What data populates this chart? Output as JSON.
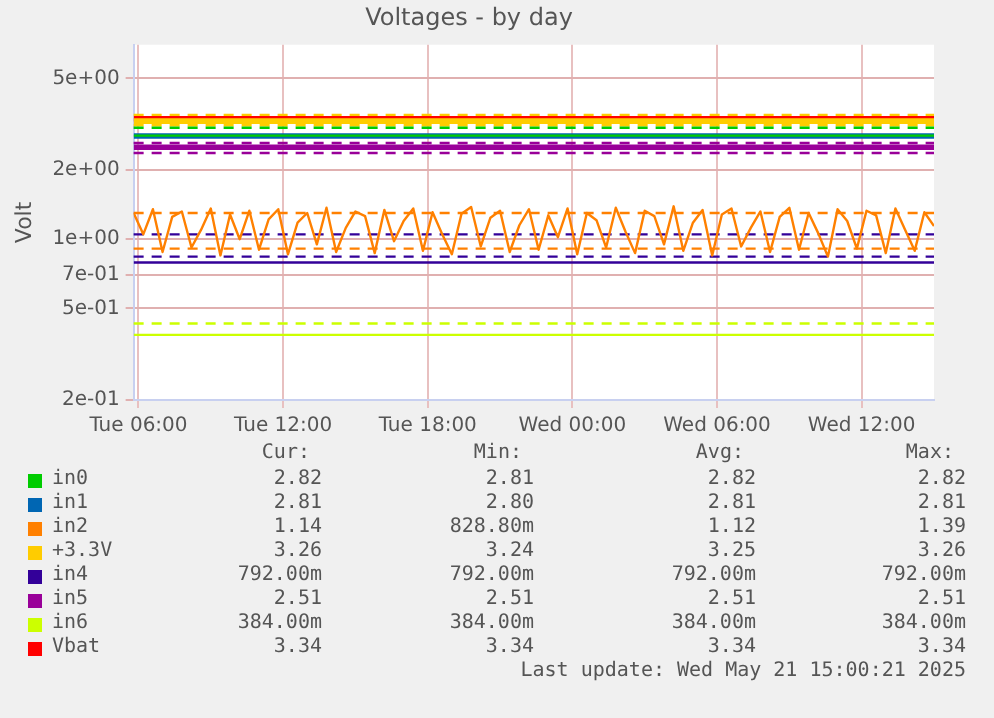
{
  "chart_data": {
    "type": "line",
    "title": "Voltages - by day",
    "ylabel": "Volt",
    "log": "y",
    "grid": true,
    "legend": "bottom",
    "marker": "none",
    "line_style": "solid",
    "x": [
      "2025-05-20T05:48",
      "2025-05-21T15:00"
    ],
    "xlim": [
      "2025-05-20T05:48",
      "2025-05-21T15:00"
    ],
    "xticks": [
      {
        "value": "2025-05-20T06:00",
        "label": "Tue 06:00"
      },
      {
        "value": "2025-05-20T12:00",
        "label": "Tue 12:00"
      },
      {
        "value": "2025-05-20T18:00",
        "label": "Tue 18:00"
      },
      {
        "value": "2025-05-21T00:00",
        "label": "Wed 00:00"
      },
      {
        "value": "2025-05-21T06:00",
        "label": "Wed 06:00"
      },
      {
        "value": "2025-05-21T12:00",
        "label": "Wed 12:00"
      }
    ],
    "ylim": [
      0.2,
      7
    ],
    "yticks": [
      {
        "value": 0.2,
        "label": "2e-01"
      },
      {
        "value": 0.5,
        "label": "5e-01"
      },
      {
        "value": 0.7,
        "label": "7e-01"
      },
      {
        "value": 1,
        "label": "1e+00"
      },
      {
        "value": 2,
        "label": "2e+00"
      },
      {
        "value": 5,
        "label": "5e+00"
      }
    ],
    "series": [
      {
        "name": "in0",
        "color": "#00cc00",
        "values": [
          2.82,
          2.82
        ]
      },
      {
        "name": "in1",
        "color": "#0066b3",
        "values": [
          2.81,
          2.81
        ]
      },
      {
        "name": "in2",
        "color": "#ff8000",
        "x": [
          "2025-05-20T05:48",
          "2025-05-20T06:12",
          "2025-05-20T06:36",
          "2025-05-20T07:00",
          "2025-05-20T07:24",
          "2025-05-20T07:48",
          "2025-05-20T08:12",
          "2025-05-20T08:36",
          "2025-05-20T09:00",
          "2025-05-20T09:24",
          "2025-05-20T09:48",
          "2025-05-20T10:12",
          "2025-05-20T10:36",
          "2025-05-20T11:00",
          "2025-05-20T11:24",
          "2025-05-20T11:48",
          "2025-05-20T12:12",
          "2025-05-20T12:36",
          "2025-05-20T13:00",
          "2025-05-20T13:24",
          "2025-05-20T13:48",
          "2025-05-20T14:12",
          "2025-05-20T14:36",
          "2025-05-20T15:00",
          "2025-05-20T15:24",
          "2025-05-20T15:48",
          "2025-05-20T16:12",
          "2025-05-20T16:36",
          "2025-05-20T17:00",
          "2025-05-20T17:24",
          "2025-05-20T17:48",
          "2025-05-20T18:12",
          "2025-05-20T18:36",
          "2025-05-20T19:00",
          "2025-05-20T19:24",
          "2025-05-20T19:48",
          "2025-05-20T20:12",
          "2025-05-20T20:36",
          "2025-05-20T21:00",
          "2025-05-20T21:24",
          "2025-05-20T21:48",
          "2025-05-20T22:12",
          "2025-05-20T22:36",
          "2025-05-20T23:00",
          "2025-05-20T23:24",
          "2025-05-20T23:48",
          "2025-05-21T00:12",
          "2025-05-21T00:36",
          "2025-05-21T01:00",
          "2025-05-21T01:24",
          "2025-05-21T01:48",
          "2025-05-21T02:12",
          "2025-05-21T02:36",
          "2025-05-21T03:00",
          "2025-05-21T03:24",
          "2025-05-21T03:48",
          "2025-05-21T04:12",
          "2025-05-21T04:36",
          "2025-05-21T05:00",
          "2025-05-21T05:24",
          "2025-05-21T05:48",
          "2025-05-21T06:12",
          "2025-05-21T06:36",
          "2025-05-21T07:00",
          "2025-05-21T07:24",
          "2025-05-21T07:48",
          "2025-05-21T08:12",
          "2025-05-21T08:36",
          "2025-05-21T09:00",
          "2025-05-21T09:24",
          "2025-05-21T09:48",
          "2025-05-21T10:12",
          "2025-05-21T10:36",
          "2025-05-21T11:00",
          "2025-05-21T11:24",
          "2025-05-21T11:48",
          "2025-05-21T12:12",
          "2025-05-21T12:36",
          "2025-05-21T13:00",
          "2025-05-21T13:24",
          "2025-05-21T13:48",
          "2025-05-21T14:12",
          "2025-05-21T14:36",
          "2025-05-21T15:00"
        ],
        "values": [
          1.3,
          1.05,
          1.35,
          0.88,
          1.25,
          1.32,
          0.92,
          1.1,
          1.36,
          0.85,
          1.28,
          1.0,
          1.33,
          0.9,
          1.22,
          1.35,
          0.86,
          1.18,
          1.3,
          0.95,
          1.37,
          0.88,
          1.12,
          1.32,
          1.26,
          0.87,
          1.34,
          0.98,
          1.2,
          1.36,
          0.89,
          1.31,
          1.05,
          0.86,
          1.29,
          1.38,
          0.93,
          1.24,
          1.33,
          0.88,
          1.15,
          1.35,
          0.9,
          1.27,
          1.02,
          1.36,
          0.86,
          1.3,
          1.21,
          0.92,
          1.37,
          1.08,
          0.87,
          1.33,
          1.26,
          0.95,
          1.39,
          0.89,
          1.18,
          1.34,
          0.85,
          1.28,
          1.36,
          0.93,
          1.12,
          1.32,
          0.88,
          1.25,
          1.37,
          0.9,
          1.3,
          1.06,
          0.84,
          1.35,
          1.2,
          0.91,
          1.33,
          1.27,
          0.87,
          1.36,
          1.1,
          0.89,
          1.31,
          1.14
        ]
      },
      {
        "name": "+3.3V",
        "color": "#ffcc00",
        "values": [
          3.26,
          3.26
        ]
      },
      {
        "name": "in4",
        "color": "#330099",
        "values": [
          0.792,
          0.792
        ]
      },
      {
        "name": "in5",
        "color": "#990099",
        "values": [
          2.51,
          2.51
        ]
      },
      {
        "name": "in6",
        "color": "#ccff00",
        "values": [
          0.384,
          0.384
        ]
      },
      {
        "name": "Vbat",
        "color": "#ff0000",
        "values": [
          3.34,
          3.34
        ]
      }
    ],
    "ref_lines": [
      {
        "axis": "y",
        "value": 3.47,
        "color": "#ffcc00",
        "line_style": "dashed"
      },
      {
        "axis": "y",
        "value": 3.13,
        "color": "#ffcc00",
        "line_style": "dashed"
      },
      {
        "axis": "y",
        "value": 3.05,
        "color": "#00cc00",
        "line_style": "dashed"
      },
      {
        "axis": "y",
        "value": 2.62,
        "color": "#990099",
        "line_style": "dashed"
      },
      {
        "axis": "y",
        "value": 2.37,
        "color": "#990099",
        "line_style": "dashed"
      },
      {
        "axis": "y",
        "value": 1.3,
        "color": "#ff8000",
        "line_style": "dashed"
      },
      {
        "axis": "y",
        "value": 0.91,
        "color": "#ff8000",
        "line_style": "dashed"
      },
      {
        "axis": "y",
        "value": 1.05,
        "color": "#330099",
        "line_style": "dashed"
      },
      {
        "axis": "y",
        "value": 0.84,
        "color": "#330099",
        "line_style": "dashed"
      },
      {
        "axis": "y",
        "value": 0.43,
        "color": "#ccff00",
        "line_style": "dashed"
      }
    ],
    "annotations": [
      "Cur:",
      "Min:",
      "Avg:",
      "Max:",
      "2.82",
      "2.81",
      "2.82",
      "2.82",
      "2.81",
      "2.80",
      "2.81",
      "2.81",
      "1.14",
      "828.80m",
      "1.12",
      "1.39",
      "3.26",
      "3.24",
      "3.25",
      "3.26",
      "792.00m",
      "792.00m",
      "792.00m",
      "792.00m",
      "2.51",
      "2.51",
      "2.51",
      "2.51",
      "384.00m",
      "384.00m",
      "384.00m",
      "384.00m",
      "3.34",
      "3.34",
      "3.34",
      "3.34",
      "Last update: Wed May 21 15:00:21 2025"
    ]
  }
}
